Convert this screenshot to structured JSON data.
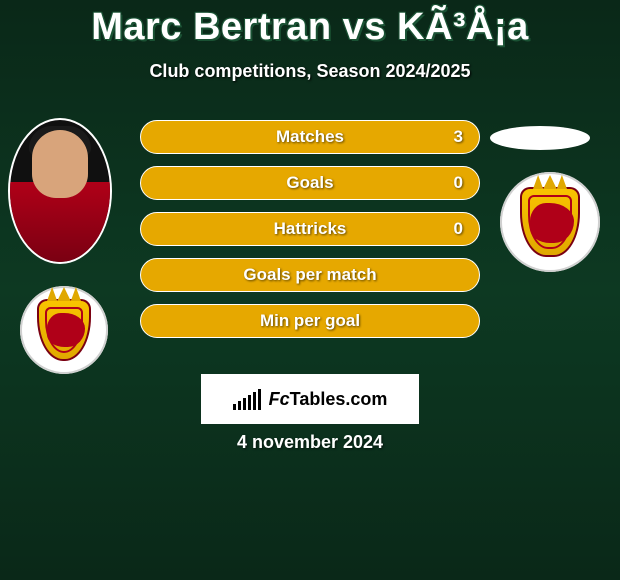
{
  "header": {
    "title": "Marc Bertran vs KÃ³Å¡a",
    "subtitle": "Club competitions, Season 2024/2025"
  },
  "stats": [
    {
      "label": "Matches",
      "value": "3",
      "color": "#e6a800"
    },
    {
      "label": "Goals",
      "value": "0",
      "color": "#e6a800"
    },
    {
      "label": "Hattricks",
      "value": "0",
      "color": "#e6a800"
    },
    {
      "label": "Goals per match",
      "value": null,
      "color": "#e6a800"
    },
    {
      "label": "Min per goal",
      "value": null,
      "color": "#e6a800"
    }
  ],
  "branding": {
    "prefix": "Fc",
    "suffix": "Tables.com"
  },
  "date": "4 november 2024",
  "palette": {
    "row_bg": "#e6a800",
    "row_border": "#ffffff",
    "text": "#ffffff",
    "badge_bg": "#ffffff",
    "shield_primary": "#f9c300",
    "shield_border": "#7a0012",
    "jersey": "#b00018"
  }
}
